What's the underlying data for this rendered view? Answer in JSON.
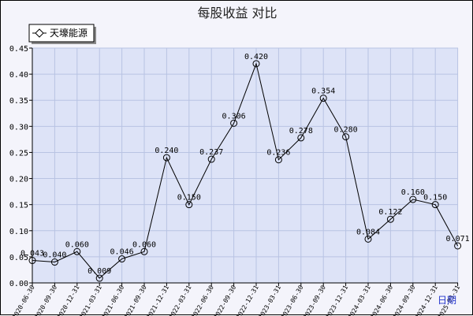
{
  "chart_data": {
    "type": "line",
    "title": "每股收益 对比",
    "xlabel": "日期",
    "ylabel": "",
    "ylim": [
      0,
      0.45
    ],
    "yticks": [
      "0.00",
      "0.05",
      "0.10",
      "0.15",
      "0.20",
      "0.25",
      "0.30",
      "0.35",
      "0.40",
      "0.45"
    ],
    "grid": true,
    "legend": "top-left",
    "categories": [
      "2020-06-30",
      "2020-09-30",
      "2020-12-31",
      "2021-03-31",
      "2021-06-30",
      "2021-09-30",
      "2021-12-31",
      "2022-03-31",
      "2022-06-30",
      "2022-09-30",
      "2022-12-31",
      "2023-03-31",
      "2023-06-30",
      "2023-09-30",
      "2023-12-31",
      "2024-03-31",
      "2024-06-30",
      "2024-09-30",
      "2024-12-31",
      "2025-03-31"
    ],
    "series": [
      {
        "name": "天壕能源",
        "values": [
          0.043,
          0.04,
          0.06,
          0.009,
          0.046,
          0.06,
          0.24,
          0.15,
          0.237,
          0.306,
          0.42,
          0.236,
          0.278,
          0.354,
          0.28,
          0.084,
          0.122,
          0.16,
          0.15,
          0.071
        ],
        "labels": [
          "0.043",
          "0.040",
          "0.060",
          "0.009",
          "0.046",
          "0.060",
          "0.240",
          "0.150",
          "0.237",
          "0.306",
          "0.420",
          "0.236",
          "0.278",
          "0.354",
          "0.280",
          "0.084",
          "0.122",
          "0.160",
          "0.150",
          "0.071"
        ]
      }
    ],
    "colors": {
      "plot_bg": "#dde3f7",
      "grid": "#b8c3e3",
      "line": "#000000",
      "frame_bg": "#f4f4fb",
      "xlabel": "#2233cc"
    }
  }
}
